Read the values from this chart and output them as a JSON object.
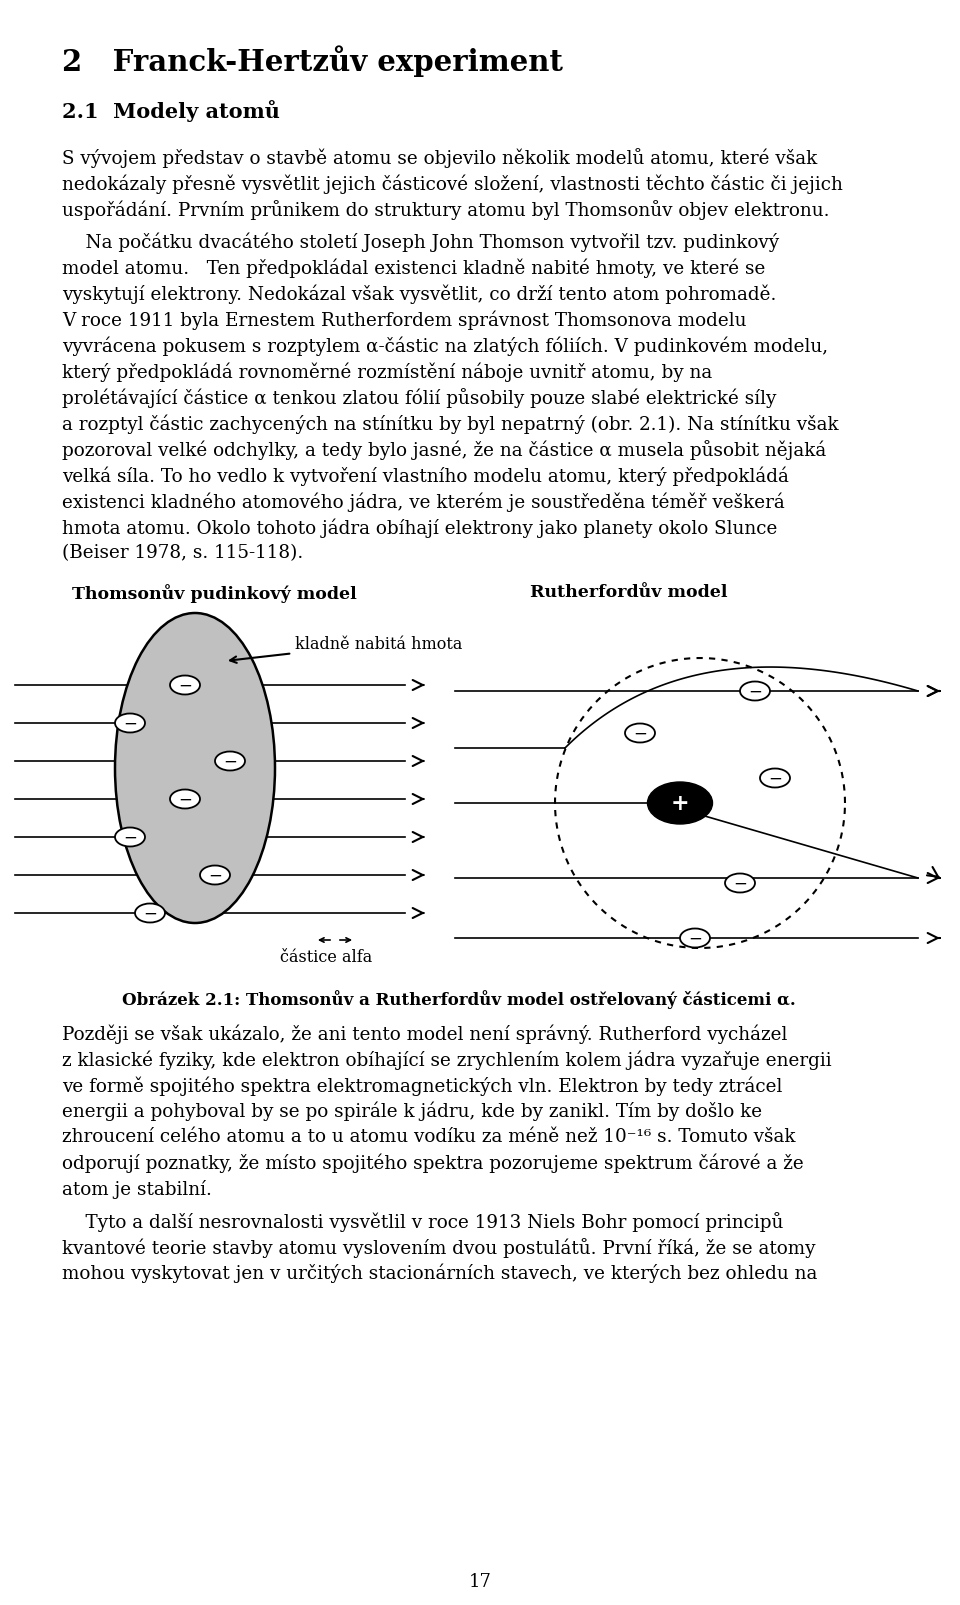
{
  "title": "2   Franck-Hertzův experiment",
  "section": "2.1  Modely atomů",
  "fig_label_left": "Thomsonův pudinkový model",
  "fig_label_right": "Rutherfordův model",
  "fig_label_arrow": "kladně nabitá hmota",
  "fig_label_alfa": "částice alfa",
  "caption": "Obrázek 2.1: Thomsonův a Rutherfordův model ostřelovaný částicemi α.",
  "page_num": "17",
  "bg_color": "#ffffff",
  "text_color": "#000000",
  "para1_lines": [
    "S vývojem představ o stavbě atomu se objevilo několik modelů atomu, které však",
    "nedokázaly přesně vysvětlit jejich částicové složení, vlastnosti těchto částic či jejich",
    "uspořádání. Prvním průnikem do struktury atomu byl Thomsonův objev elektronu."
  ],
  "para2_lines": [
    "    Na počátku dvacátého století Joseph John Thomson vytvořil tzv. pudinkový",
    "model atomu.   Ten předpokládal existenci kladně nabité hmoty, ve které se",
    "vyskytují elektrony. Nedokázal však vysvětlit, co drží tento atom pohromadě.",
    "V roce 1911 byla Ernestem Rutherfordem správnost Thomsonova modelu",
    "vyvrácena pokusem s rozptylem α-částic na zlatých fóliích. V pudinkovém modelu,",
    "který předpokládá rovnoměrné rozmístění náboje uvnitř atomu, by na",
    "prolétávající částice α tenkou zlatou fólií působily pouze slabé elektrické síly",
    "a rozptyl částic zachycených na stínítku by byl nepatrný (obr. 2.1). Na stínítku však",
    "pozoroval velké odchylky, a tedy bylo jasné, že na částice α musela působit nějaká",
    "velká síla. To ho vedlo k vytvoření vlastního modelu atomu, který předpokládá",
    "existenci kladného atomového jádra, ve kterém je soustředěna téměř veškerá",
    "hmota atomu. Okolo tohoto jádra obíhají elektrony jako planety okolo Slunce",
    "(Beiser 1978, s. 115-118)."
  ],
  "para3_lines": [
    "Později se však ukázalo, že ani tento model není správný. Rutherford vycházel",
    "z klasické fyziky, kde elektron obíhající se zrychlením kolem jádra vyzařuje energii",
    "ve formě spojitého spektra elektromagnetických vln. Elektron by tedy ztrácel",
    "energii a pohyboval by se po spirále k jádru, kde by zanikl. Tím by došlo ke",
    "zhroucení celého atomu a to u atomu vodíku za méně než 10⁻¹⁶ s. Tomuto však",
    "odporují poznatky, že místo spojitého spektra pozorujeme spektrum čárové a že",
    "atom je stabilní."
  ],
  "para4_lines": [
    "    Tyto a další nesrovnalosti vysvětlil v roce 1913 Niels Bohr pomocí principů",
    "kvantové teorie stavby atomu vyslovením dvou postulátů. První říká, že se atomy",
    "mohou vyskytovat jen v určitých stacionárních stavech, ve kterých bez ohledu na"
  ]
}
